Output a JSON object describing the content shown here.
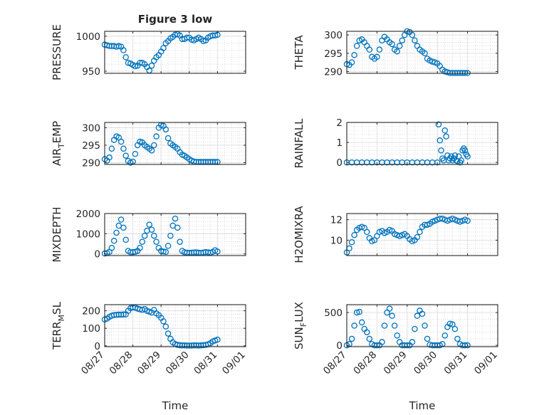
{
  "figure": {
    "title": "Figure 3 low",
    "marker_color": "#0072BD",
    "axis_color": "#262626"
  },
  "chart_data": [
    {
      "type": "scatter",
      "panel": "pressure",
      "ylabel": "PRESSURE",
      "ylim": [
        947,
        1007
      ],
      "yticks": [
        950,
        1000
      ],
      "yticklabels": [
        "950",
        "1000"
      ],
      "grid": true,
      "minor_grid": true,
      "x": [
        "08/27 00:00",
        "08/27 02:00",
        "08/27 04:00",
        "08/27 06:00",
        "08/27 08:00",
        "08/27 10:00",
        "08/27 12:00",
        "08/27 14:00",
        "08/27 16:00",
        "08/27 18:00",
        "08/27 20:00",
        "08/27 22:00",
        "08/28 00:00",
        "08/28 02:00",
        "08/28 04:00",
        "08/28 06:00",
        "08/28 08:00",
        "08/28 10:00",
        "08/28 12:00",
        "08/28 14:00",
        "08/28 16:00",
        "08/28 18:00",
        "08/28 20:00",
        "08/28 22:00",
        "08/29 00:00",
        "08/29 02:00",
        "08/29 04:00",
        "08/29 06:00",
        "08/29 08:00",
        "08/29 10:00",
        "08/29 12:00",
        "08/29 14:00",
        "08/29 16:00",
        "08/29 18:00",
        "08/29 20:00",
        "08/29 22:00",
        "08/30 00:00",
        "08/30 02:00",
        "08/30 04:00",
        "08/30 06:00",
        "08/30 08:00",
        "08/30 10:00",
        "08/30 12:00",
        "08/30 14:00",
        "08/30 16:00",
        "08/30 18:00",
        "08/30 20:00",
        "08/30 22:00",
        "08/31 00:00"
      ],
      "y": [
        988,
        987,
        986,
        986,
        986,
        985,
        986,
        985,
        980,
        970,
        962,
        961,
        959,
        957,
        958,
        962,
        962,
        960,
        956,
        951,
        958,
        965,
        970,
        973,
        978,
        983,
        990,
        993,
        997,
        999,
        1002,
        1003,
        1001,
        996,
        996,
        998,
        998,
        995,
        994,
        996,
        998,
        996,
        993,
        994,
        998,
        1000,
        1001,
        1001,
        1002
      ]
    },
    {
      "type": "scatter",
      "panel": "theta",
      "ylabel": "THETA",
      "ylim": [
        289.5,
        301
      ],
      "yticks": [
        290,
        295,
        300
      ],
      "yticklabels": [
        "290",
        "295",
        "300"
      ],
      "grid": true,
      "minor_grid": true,
      "x": [
        "08/27 00:00",
        "08/27 02:00",
        "08/27 04:00",
        "08/27 06:00",
        "08/27 08:00",
        "08/27 10:00",
        "08/27 12:00",
        "08/27 14:00",
        "08/27 16:00",
        "08/27 18:00",
        "08/27 20:00",
        "08/27 22:00",
        "08/28 00:00",
        "08/28 02:00",
        "08/28 04:00",
        "08/28 06:00",
        "08/28 08:00",
        "08/28 10:00",
        "08/28 12:00",
        "08/28 14:00",
        "08/28 16:00",
        "08/28 18:00",
        "08/28 20:00",
        "08/28 22:00",
        "08/29 00:00",
        "08/29 02:00",
        "08/29 04:00",
        "08/29 06:00",
        "08/29 08:00",
        "08/29 10:00",
        "08/29 12:00",
        "08/29 14:00",
        "08/29 16:00",
        "08/29 18:00",
        "08/29 20:00",
        "08/29 22:00",
        "08/30 00:00",
        "08/30 02:00",
        "08/30 04:00",
        "08/30 06:00",
        "08/30 08:00",
        "08/30 10:00",
        "08/30 12:00",
        "08/30 14:00",
        "08/30 16:00",
        "08/30 18:00",
        "08/30 20:00",
        "08/30 22:00",
        "08/31 00:00"
      ],
      "y": [
        292,
        291.8,
        292.5,
        294.5,
        297,
        298.5,
        298.8,
        298,
        297,
        296,
        294,
        293.5,
        294,
        296,
        298.5,
        299.5,
        298.8,
        298,
        297.5,
        296,
        295.5,
        297,
        298.5,
        300,
        301,
        300.8,
        300,
        298.5,
        297,
        296,
        295.5,
        295,
        293.5,
        293,
        292.7,
        292.5,
        292.2,
        291.5,
        290.5,
        290,
        289.8,
        289.6,
        289.6,
        289.6,
        289.6,
        289.6,
        289.6,
        289.6,
        289.6
      ]
    },
    {
      "type": "scatter",
      "panel": "air_temp",
      "ylabel": "AIR_TEMP",
      "ylim": [
        289.5,
        301.5
      ],
      "yticks": [
        290,
        295,
        300
      ],
      "yticklabels": [
        "290",
        "295",
        "300"
      ],
      "grid": true,
      "minor_grid": true,
      "x": [
        "08/27 00:00",
        "08/27 02:00",
        "08/27 04:00",
        "08/27 06:00",
        "08/27 08:00",
        "08/27 10:00",
        "08/27 12:00",
        "08/27 14:00",
        "08/27 16:00",
        "08/27 18:00",
        "08/27 20:00",
        "08/27 22:00",
        "08/28 00:00",
        "08/28 02:00",
        "08/28 04:00",
        "08/28 06:00",
        "08/28 08:00",
        "08/28 10:00",
        "08/28 12:00",
        "08/28 14:00",
        "08/28 16:00",
        "08/28 18:00",
        "08/28 20:00",
        "08/28 22:00",
        "08/29 00:00",
        "08/29 02:00",
        "08/29 04:00",
        "08/29 06:00",
        "08/29 08:00",
        "08/29 10:00",
        "08/29 12:00",
        "08/29 14:00",
        "08/29 16:00",
        "08/29 18:00",
        "08/29 20:00",
        "08/29 22:00",
        "08/30 00:00",
        "08/30 02:00",
        "08/30 04:00",
        "08/30 06:00",
        "08/30 08:00",
        "08/30 10:00",
        "08/30 12:00",
        "08/30 14:00",
        "08/30 16:00",
        "08/30 18:00",
        "08/30 20:00",
        "08/30 22:00",
        "08/31 00:00"
      ],
      "y": [
        291,
        290.6,
        291.5,
        294,
        296.5,
        297.5,
        297.2,
        296,
        294,
        292,
        290.5,
        290,
        290.3,
        292.5,
        295,
        296,
        295.8,
        295,
        294.5,
        294,
        293.5,
        295,
        297.5,
        300,
        300.8,
        300.5,
        299.5,
        297,
        295.5,
        295,
        294.5,
        294,
        293,
        292.3,
        292,
        291.5,
        291,
        290.6,
        290.3,
        290.2,
        290.2,
        290.2,
        290.2,
        290.2,
        290.2,
        290.2,
        290.2,
        290.2,
        290.2
      ]
    },
    {
      "type": "scatter",
      "panel": "rainfall",
      "ylabel": "RAINFALL",
      "ylim": [
        -0.1,
        2
      ],
      "yticks": [
        0,
        1,
        2
      ],
      "yticklabels": [
        "0",
        "1",
        "2"
      ],
      "grid": true,
      "minor_grid": true,
      "x": [
        "08/27 00:00",
        "08/27 04:00",
        "08/27 08:00",
        "08/27 12:00",
        "08/27 16:00",
        "08/27 20:00",
        "08/28 00:00",
        "08/28 04:00",
        "08/28 08:00",
        "08/28 12:00",
        "08/28 16:00",
        "08/28 20:00",
        "08/29 00:00",
        "08/29 04:00",
        "08/29 08:00",
        "08/29 12:00",
        "08/29 16:00",
        "08/29 20:00",
        "08/30 00:00",
        "08/30 01:00",
        "08/30 02:00",
        "08/30 03:00",
        "08/30 04:00",
        "08/30 05:00",
        "08/30 06:00",
        "08/30 07:00",
        "08/30 08:00",
        "08/30 09:00",
        "08/30 10:00",
        "08/30 11:00",
        "08/30 12:00",
        "08/30 13:00",
        "08/30 14:00",
        "08/30 15:00",
        "08/30 16:00",
        "08/30 17:00",
        "08/30 18:00",
        "08/30 19:00",
        "08/30 20:00",
        "08/30 21:00",
        "08/30 22:00",
        "08/30 23:00",
        "08/31 00:00"
      ],
      "y": [
        0,
        0,
        0,
        0,
        0,
        0,
        0,
        0,
        0,
        0,
        0,
        0,
        0,
        0,
        0,
        0,
        0,
        0,
        0,
        1.9,
        1.1,
        0.6,
        0.2,
        0.1,
        1.6,
        1.3,
        0.35,
        0.1,
        0.2,
        0.3,
        0.1,
        0.2,
        0.35,
        0.1,
        0.05,
        0.3,
        0,
        0.1,
        0.6,
        0.7,
        0.6,
        0.4,
        0.3
      ]
    },
    {
      "type": "scatter",
      "panel": "mixdepth",
      "ylabel": "MIXDEPTH",
      "ylim": [
        -80,
        2000
      ],
      "yticks": [
        0,
        1000,
        2000
      ],
      "yticklabels": [
        "0",
        "1000",
        "2000"
      ],
      "grid": true,
      "minor_grid": true,
      "x": [
        "08/27 00:00",
        "08/27 02:00",
        "08/27 04:00",
        "08/27 06:00",
        "08/27 08:00",
        "08/27 10:00",
        "08/27 12:00",
        "08/27 14:00",
        "08/27 16:00",
        "08/27 18:00",
        "08/27 20:00",
        "08/27 22:00",
        "08/28 00:00",
        "08/28 02:00",
        "08/28 04:00",
        "08/28 06:00",
        "08/28 08:00",
        "08/28 10:00",
        "08/28 12:00",
        "08/28 14:00",
        "08/28 16:00",
        "08/28 18:00",
        "08/28 20:00",
        "08/28 22:00",
        "08/29 00:00",
        "08/29 02:00",
        "08/29 04:00",
        "08/29 06:00",
        "08/29 08:00",
        "08/29 10:00",
        "08/29 12:00",
        "08/29 14:00",
        "08/29 16:00",
        "08/29 18:00",
        "08/29 20:00",
        "08/29 22:00",
        "08/30 00:00",
        "08/30 02:00",
        "08/30 04:00",
        "08/30 06:00",
        "08/30 08:00",
        "08/30 10:00",
        "08/30 12:00",
        "08/30 14:00",
        "08/30 16:00",
        "08/30 18:00",
        "08/30 20:00",
        "08/30 22:00",
        "08/31 00:00"
      ],
      "y": [
        20,
        40,
        100,
        300,
        650,
        1050,
        1400,
        1700,
        1300,
        700,
        150,
        80,
        90,
        100,
        150,
        300,
        600,
        900,
        1150,
        1450,
        1200,
        900,
        600,
        300,
        150,
        120,
        100,
        400,
        900,
        1400,
        1750,
        1300,
        600,
        150,
        80,
        60,
        50,
        60,
        70,
        80,
        60,
        50,
        70,
        90,
        80,
        60,
        100,
        180,
        120
      ]
    },
    {
      "type": "scatter",
      "panel": "h2omixra",
      "ylabel": "H2OMIXRA",
      "ylim": [
        8.5,
        12.6
      ],
      "yticks": [
        10,
        12
      ],
      "yticklabels": [
        "10",
        "12"
      ],
      "grid": true,
      "minor_grid": true,
      "x": [
        "08/27 00:00",
        "08/27 02:00",
        "08/27 04:00",
        "08/27 06:00",
        "08/27 08:00",
        "08/27 10:00",
        "08/27 12:00",
        "08/27 14:00",
        "08/27 16:00",
        "08/27 18:00",
        "08/27 20:00",
        "08/27 22:00",
        "08/28 00:00",
        "08/28 02:00",
        "08/28 04:00",
        "08/28 06:00",
        "08/28 08:00",
        "08/28 10:00",
        "08/28 12:00",
        "08/28 14:00",
        "08/28 16:00",
        "08/28 18:00",
        "08/28 20:00",
        "08/28 22:00",
        "08/29 00:00",
        "08/29 02:00",
        "08/29 04:00",
        "08/29 06:00",
        "08/29 08:00",
        "08/29 10:00",
        "08/29 12:00",
        "08/29 14:00",
        "08/29 16:00",
        "08/29 18:00",
        "08/29 20:00",
        "08/29 22:00",
        "08/30 00:00",
        "08/30 02:00",
        "08/30 04:00",
        "08/30 06:00",
        "08/30 08:00",
        "08/30 10:00",
        "08/30 12:00",
        "08/30 14:00",
        "08/30 16:00",
        "08/30 18:00",
        "08/30 20:00",
        "08/30 22:00",
        "08/31 00:00"
      ],
      "y": [
        8.8,
        9.2,
        9.8,
        10.5,
        11,
        11.2,
        11.3,
        11.2,
        10.8,
        10.2,
        9.9,
        10,
        10.4,
        10.8,
        10.9,
        10.7,
        10.8,
        11,
        10.9,
        10.6,
        10.5,
        10.4,
        10.5,
        10.6,
        10.4,
        10.1,
        9.9,
        10,
        10.3,
        10.8,
        11.3,
        11.5,
        11.5,
        11.6,
        11.8,
        11.9,
        12,
        12.1,
        12.1,
        12,
        11.9,
        12,
        12.1,
        12,
        11.9,
        11.8,
        11.9,
        12,
        11.9
      ]
    },
    {
      "type": "scatter",
      "panel": "terr_msl",
      "ylabel": "TERR_MSL",
      "ylim": [
        -5,
        235
      ],
      "yticks": [
        0,
        100,
        200
      ],
      "yticklabels": [
        "0",
        "100",
        "200"
      ],
      "grid": true,
      "minor_grid": true,
      "x": [
        "08/27 00:00",
        "08/27 02:00",
        "08/27 04:00",
        "08/27 06:00",
        "08/27 08:00",
        "08/27 10:00",
        "08/27 12:00",
        "08/27 14:00",
        "08/27 16:00",
        "08/27 18:00",
        "08/27 20:00",
        "08/27 22:00",
        "08/28 00:00",
        "08/28 02:00",
        "08/28 04:00",
        "08/28 06:00",
        "08/28 08:00",
        "08/28 10:00",
        "08/28 12:00",
        "08/28 14:00",
        "08/28 16:00",
        "08/28 18:00",
        "08/28 20:00",
        "08/28 22:00",
        "08/29 00:00",
        "08/29 02:00",
        "08/29 04:00",
        "08/29 06:00",
        "08/29 08:00",
        "08/29 10:00",
        "08/29 12:00",
        "08/29 14:00",
        "08/29 16:00",
        "08/29 18:00",
        "08/29 20:00",
        "08/29 22:00",
        "08/30 00:00",
        "08/30 02:00",
        "08/30 04:00",
        "08/30 06:00",
        "08/30 08:00",
        "08/30 10:00",
        "08/30 12:00",
        "08/30 14:00",
        "08/30 16:00",
        "08/30 18:00",
        "08/30 20:00",
        "08/30 22:00",
        "08/31 00:00"
      ],
      "y": [
        150,
        155,
        165,
        172,
        176,
        177,
        178,
        178,
        179,
        180,
        200,
        215,
        220,
        218,
        212,
        208,
        205,
        210,
        200,
        195,
        190,
        205,
        185,
        175,
        160,
        140,
        110,
        70,
        40,
        20,
        10,
        5,
        3,
        2,
        2,
        1,
        1,
        1,
        2,
        2,
        1,
        2,
        3,
        5,
        8,
        15,
        25,
        30,
        35
      ]
    },
    {
      "type": "scatter",
      "panel": "sun_flux",
      "ylabel": "SUN_FLUX",
      "ylim": [
        -20,
        620
      ],
      "yticks": [
        0,
        500
      ],
      "yticklabels": [
        "0",
        "500"
      ],
      "grid": true,
      "minor_grid": true,
      "x": [
        "08/27 00:00",
        "08/27 02:00",
        "08/27 04:00",
        "08/27 06:00",
        "08/27 08:00",
        "08/27 10:00",
        "08/27 12:00",
        "08/27 14:00",
        "08/27 16:00",
        "08/27 18:00",
        "08/27 20:00",
        "08/27 22:00",
        "08/28 00:00",
        "08/28 02:00",
        "08/28 04:00",
        "08/28 06:00",
        "08/28 08:00",
        "08/28 10:00",
        "08/28 12:00",
        "08/28 14:00",
        "08/28 16:00",
        "08/28 18:00",
        "08/28 20:00",
        "08/28 22:00",
        "08/29 00:00",
        "08/29 02:00",
        "08/29 04:00",
        "08/29 06:00",
        "08/29 08:00",
        "08/29 10:00",
        "08/29 12:00",
        "08/29 14:00",
        "08/29 16:00",
        "08/29 18:00",
        "08/29 20:00",
        "08/29 22:00",
        "08/30 00:00",
        "08/30 02:00",
        "08/30 04:00",
        "08/30 06:00",
        "08/30 08:00",
        "08/30 10:00",
        "08/30 12:00",
        "08/30 14:00",
        "08/30 16:00",
        "08/30 18:00",
        "08/30 20:00",
        "08/30 22:00",
        "08/31 00:00"
      ],
      "y": [
        0,
        20,
        100,
        300,
        500,
        510,
        350,
        250,
        200,
        100,
        20,
        0,
        0,
        0,
        50,
        300,
        500,
        560,
        450,
        300,
        150,
        50,
        0,
        0,
        0,
        0,
        50,
        250,
        450,
        530,
        480,
        300,
        100,
        10,
        0,
        0,
        0,
        0,
        20,
        150,
        280,
        330,
        320,
        250,
        100,
        20,
        0,
        0,
        0
      ]
    }
  ],
  "x_axis": {
    "xlim": [
      "08/27 00:00",
      "09/01 00:00"
    ],
    "ticks": [
      "08/27 00:00",
      "08/28 00:00",
      "08/29 00:00",
      "08/30 00:00",
      "08/31 00:00",
      "09/01 00:00"
    ],
    "ticklabels": [
      "08/27",
      "08/28",
      "08/29",
      "08/30",
      "08/31",
      "09/01"
    ],
    "xlabel": "Time"
  },
  "ylabel_parts": {
    "air_temp": {
      "main": "AIR",
      "sub": "T",
      "rest": "EMP"
    },
    "terr_msl": {
      "main": "TERR",
      "sub": "M",
      "rest": "SL"
    },
    "sun_flux": {
      "main": "SUN",
      "sub": "F",
      "rest": "LUX"
    }
  }
}
